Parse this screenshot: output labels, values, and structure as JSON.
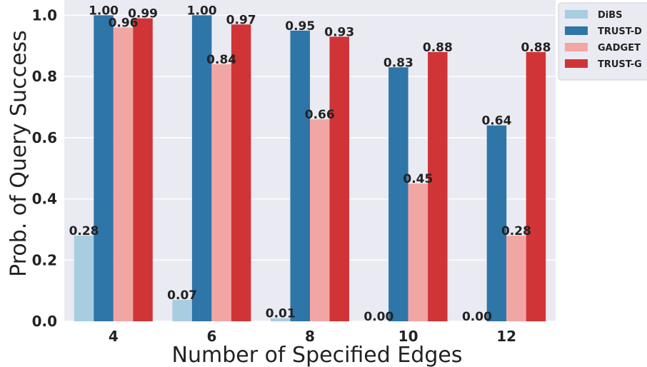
{
  "chart_data": {
    "type": "bar",
    "xlabel": "Number of Specified Edges",
    "ylabel": "Prob. of Query Success",
    "categories": [
      "4",
      "6",
      "8",
      "10",
      "12"
    ],
    "ylim": [
      0,
      1.05
    ],
    "yticks": [
      "0.0",
      "0.2",
      "0.4",
      "0.6",
      "0.8",
      "1.0"
    ],
    "grid": true,
    "legend_position": "outside-top-right",
    "series": [
      {
        "name": "DiBS",
        "color": "#a8cde0",
        "values": [
          0.28,
          0.07,
          0.01,
          0.0,
          0.0
        ],
        "labels": [
          "0.28",
          "0.07",
          "0.01",
          "0.00",
          "0.00"
        ]
      },
      {
        "name": "TRUST-D",
        "color": "#2e75a8",
        "values": [
          1.0,
          1.0,
          0.95,
          0.83,
          0.64
        ],
        "labels": [
          "1.00",
          "1.00",
          "0.95",
          "0.83",
          "0.64"
        ]
      },
      {
        "name": "GADGET",
        "color": "#f2a6a4",
        "values": [
          0.96,
          0.84,
          0.66,
          0.45,
          0.28
        ],
        "labels": [
          "0.96",
          "0.84",
          "0.66",
          "0.45",
          "0.28"
        ]
      },
      {
        "name": "TRUST-G",
        "color": "#d03436",
        "values": [
          0.99,
          0.97,
          0.93,
          0.88,
          0.88
        ],
        "labels": [
          "0.99",
          "0.97",
          "0.93",
          "0.88",
          "0.88"
        ]
      }
    ]
  }
}
